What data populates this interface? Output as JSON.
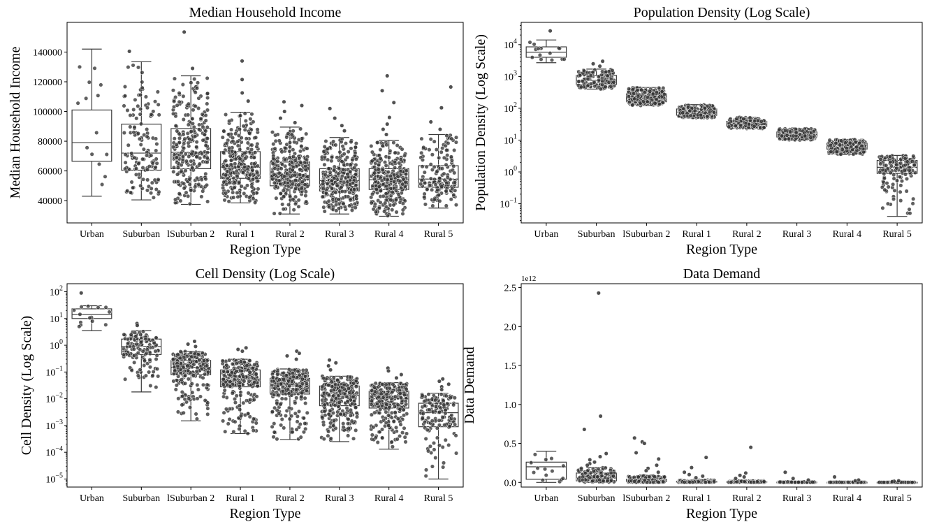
{
  "chart_data": [
    {
      "type": "box",
      "title": "Median Household Income",
      "xlabel": "Region Type",
      "ylabel": "Median Household Income",
      "scale": "linear",
      "ylim": [
        25000,
        160000
      ],
      "yticks": [
        40000,
        60000,
        80000,
        100000,
        120000,
        140000
      ],
      "ytick_labels": [
        "40000",
        "60000",
        "80000",
        "100000",
        "120000",
        "140000"
      ],
      "categories": [
        "Urban",
        "Suburban",
        "lSuburban 2",
        "Rural 1",
        "Rural 2",
        "Rural 3",
        "Rural 4",
        "Rural 5"
      ],
      "boxes": [
        {
          "whislo": 43000,
          "q1": 66500,
          "med": 79000,
          "q3": 101000,
          "whishi": 142000,
          "n": 14
        },
        {
          "whislo": 40500,
          "q1": 60500,
          "med": 72000,
          "q3": 91500,
          "whishi": 133500,
          "n": 130
        },
        {
          "whislo": 37500,
          "q1": 61500,
          "med": 72500,
          "q3": 88500,
          "whishi": 124000,
          "n": 250
        },
        {
          "whislo": 38500,
          "q1": 55000,
          "med": 62500,
          "q3": 73000,
          "whishi": 99500,
          "n": 280
        },
        {
          "whislo": 31000,
          "q1": 50000,
          "med": 57000,
          "q3": 66000,
          "whishi": 89500,
          "n": 280
        },
        {
          "whislo": 31000,
          "q1": 46500,
          "med": 53500,
          "q3": 61500,
          "whishi": 82500,
          "n": 290
        },
        {
          "whislo": 29500,
          "q1": 47500,
          "med": 54000,
          "q3": 61500,
          "whishi": 80500,
          "n": 270
        },
        {
          "whislo": 35000,
          "q1": 49000,
          "med": 54500,
          "q3": 63500,
          "whishi": 84500,
          "n": 140
        }
      ],
      "outliers": [
        {
          "category": "Suburban",
          "values": [
            140500
          ]
        },
        {
          "category": "lSuburban 2",
          "values": [
            153500,
            129000
          ]
        },
        {
          "category": "Rural 1",
          "values": [
            134000,
            121500,
            112500,
            107000
          ]
        },
        {
          "category": "Rural 2",
          "values": [
            106500,
            104000,
            100000,
            95500,
            92500
          ]
        },
        {
          "category": "Rural 3",
          "values": [
            102000,
            95500,
            90500,
            87000
          ]
        },
        {
          "category": "Rural 4",
          "values": [
            124000,
            114000,
            106000,
            96000,
            91500,
            88000,
            84500
          ]
        },
        {
          "category": "Rural 5",
          "values": [
            116500,
            102500,
            93000,
            88000
          ]
        }
      ]
    },
    {
      "type": "box",
      "title": "Population Density (Log Scale)",
      "xlabel": "Region Type",
      "ylabel": "Population Density (Log Scale)",
      "scale": "log",
      "ylim": [
        0.025,
        50000
      ],
      "yticks": [
        0.1,
        1,
        10,
        100,
        1000,
        10000
      ],
      "ytick_base": [
        "10",
        "10",
        "10",
        "10",
        "10",
        "10"
      ],
      "ytick_exp": [
        "−1",
        "0",
        "1",
        "2",
        "3",
        "4"
      ],
      "categories": [
        "Urban",
        "Suburban",
        "lSuburban 2",
        "Rural 1",
        "Rural 2",
        "Rural 3",
        "Rural 4",
        "Rural 5"
      ],
      "boxes": [
        {
          "whislo": 2700,
          "q1": 4000,
          "med": 5800,
          "q3": 8500,
          "whishi": 14000,
          "n": 14
        },
        {
          "whislo": 400,
          "q1": 560,
          "med": 750,
          "q3": 1080,
          "whishi": 1700,
          "n": 130
        },
        {
          "whislo": 120,
          "q1": 160,
          "med": 210,
          "q3": 285,
          "whishi": 450,
          "n": 250
        },
        {
          "whislo": 50,
          "q1": 60,
          "med": 75,
          "q3": 95,
          "whishi": 130,
          "n": 280
        },
        {
          "whislo": 23,
          "q1": 27,
          "med": 33,
          "q3": 39,
          "whishi": 52,
          "n": 280
        },
        {
          "whislo": 10,
          "q1": 12.5,
          "med": 15,
          "q3": 18,
          "whishi": 23,
          "n": 290
        },
        {
          "whislo": 3.5,
          "q1": 5.2,
          "med": 6.5,
          "q3": 8,
          "whishi": 10.5,
          "n": 270
        },
        {
          "whislo": 0.04,
          "q1": 0.9,
          "med": 1.4,
          "q3": 2.3,
          "whishi": 3.3,
          "n": 140
        }
      ],
      "outliers": [
        {
          "category": "Urban",
          "values": [
            27000
          ]
        },
        {
          "category": "Suburban",
          "values": [
            3000,
            2500,
            2100
          ]
        }
      ]
    },
    {
      "type": "box",
      "title": "Cell Density (Log Scale)",
      "xlabel": "Region Type",
      "ylabel": "Cell Density (Log Scale)",
      "scale": "log",
      "ylim": [
        5e-06,
        200
      ],
      "yticks": [
        1e-05,
        0.0001,
        0.001,
        0.01,
        0.1,
        1,
        10,
        100
      ],
      "ytick_base": [
        "10",
        "10",
        "10",
        "10",
        "10",
        "10",
        "10",
        "10"
      ],
      "ytick_exp": [
        "−5",
        "−4",
        "−3",
        "−2",
        "−1",
        "0",
        "1",
        "2"
      ],
      "categories": [
        "Urban",
        "Suburban",
        "lSuburban 2",
        "Rural 1",
        "Rural 2",
        "Rural 3",
        "Rural 4",
        "Rural 5"
      ],
      "boxes": [
        {
          "whislo": 3.5,
          "q1": 10,
          "med": 14,
          "q3": 23,
          "whishi": 30,
          "n": 14
        },
        {
          "whislo": 0.018,
          "q1": 0.45,
          "med": 0.9,
          "q3": 1.7,
          "whishi": 3.5,
          "n": 130
        },
        {
          "whislo": 0.0015,
          "q1": 0.08,
          "med": 0.15,
          "q3": 0.27,
          "whishi": 0.6,
          "n": 250
        },
        {
          "whislo": 0.0005,
          "q1": 0.028,
          "med": 0.055,
          "q3": 0.12,
          "whishi": 0.3,
          "n": 280
        },
        {
          "whislo": 0.0003,
          "q1": 0.015,
          "med": 0.03,
          "q3": 0.058,
          "whishi": 0.13,
          "n": 280
        },
        {
          "whislo": 0.00025,
          "q1": 0.0055,
          "med": 0.013,
          "q3": 0.03,
          "whishi": 0.07,
          "n": 290
        },
        {
          "whislo": 0.00013,
          "q1": 0.0045,
          "med": 0.01,
          "q3": 0.019,
          "whishi": 0.04,
          "n": 270
        },
        {
          "whislo": 1e-05,
          "q1": 0.0009,
          "med": 0.003,
          "q3": 0.0068,
          "whishi": 0.016,
          "n": 140
        }
      ],
      "outliers": [
        {
          "category": "Urban",
          "values": [
            90
          ]
        },
        {
          "category": "Suburban",
          "values": [
            6.5,
            5.5
          ]
        },
        {
          "category": "lSuburban 2",
          "values": [
            1.4,
            1.1,
            0.9
          ]
        },
        {
          "category": "Rural 1",
          "values": [
            0.8,
            0.7,
            0.6
          ]
        },
        {
          "category": "Rural 2",
          "values": [
            0.6,
            0.5,
            0.4,
            0.3
          ]
        },
        {
          "category": "Rural 3",
          "values": [
            0.28,
            0.22,
            0.17,
            0.12
          ]
        },
        {
          "category": "Rural 4",
          "values": [
            0.14,
            0.11,
            0.08,
            0.06
          ]
        },
        {
          "category": "Rural 5",
          "values": [
            0.055,
            0.045,
            0.035,
            0.028,
            0.022
          ]
        }
      ]
    },
    {
      "type": "box",
      "title": "Data Demand",
      "xlabel": "Region Type",
      "ylabel": "Data Demand",
      "scale": "linear",
      "offset_text": "1e12",
      "ylim": [
        -0.06,
        2.55
      ],
      "yticks": [
        0,
        0.5,
        1.0,
        1.5,
        2.0,
        2.5
      ],
      "ytick_labels": [
        "0.0",
        "0.5",
        "1.0",
        "1.5",
        "2.0",
        "2.5"
      ],
      "categories": [
        "Urban",
        "Suburban",
        "lSuburban 2",
        "Rural 1",
        "Rural 2",
        "Rural 3",
        "Rural 4",
        "Rural 5"
      ],
      "boxes": [
        {
          "whislo": 0.0,
          "q1": 0.04,
          "med": 0.2,
          "q3": 0.26,
          "whishi": 0.4,
          "n": 14
        },
        {
          "whislo": 0.0,
          "q1": 0.02,
          "med": 0.055,
          "q3": 0.12,
          "whishi": 0.19,
          "n": 130
        },
        {
          "whislo": 0.0,
          "q1": 0.008,
          "med": 0.02,
          "q3": 0.04,
          "whishi": 0.085,
          "n": 250
        },
        {
          "whislo": 0.0,
          "q1": 0.003,
          "med": 0.008,
          "q3": 0.015,
          "whishi": 0.03,
          "n": 280
        },
        {
          "whislo": 0.0,
          "q1": 0.002,
          "med": 0.005,
          "q3": 0.01,
          "whishi": 0.02,
          "n": 280
        },
        {
          "whislo": 0.0,
          "q1": 0.001,
          "med": 0.002,
          "q3": 0.004,
          "whishi": 0.008,
          "n": 290
        },
        {
          "whislo": 0.0,
          "q1": 0.0005,
          "med": 0.001,
          "q3": 0.002,
          "whishi": 0.004,
          "n": 270
        },
        {
          "whislo": 0.0,
          "q1": 0.0002,
          "med": 0.0005,
          "q3": 0.001,
          "whishi": 0.002,
          "n": 140
        }
      ],
      "outliers": [
        {
          "category": "Suburban",
          "values": [
            2.43,
            0.85,
            0.68,
            0.37,
            0.33,
            0.29,
            0.26,
            0.24,
            0.22
          ]
        },
        {
          "category": "lSuburban 2",
          "values": [
            0.57,
            0.52,
            0.5,
            0.38,
            0.3,
            0.22,
            0.18,
            0.15,
            0.13
          ]
        },
        {
          "category": "Rural 1",
          "values": [
            0.32,
            0.19,
            0.13,
            0.1,
            0.08,
            0.06
          ]
        },
        {
          "category": "Rural 2",
          "values": [
            0.45,
            0.12,
            0.09,
            0.07,
            0.05
          ]
        },
        {
          "category": "Rural 3",
          "values": [
            0.13,
            0.05,
            0.03
          ]
        },
        {
          "category": "Rural 4",
          "values": [
            0.07,
            0.03,
            0.02
          ]
        },
        {
          "category": "Rural 5",
          "values": [
            0.02,
            0.015,
            0.01
          ]
        }
      ]
    }
  ]
}
